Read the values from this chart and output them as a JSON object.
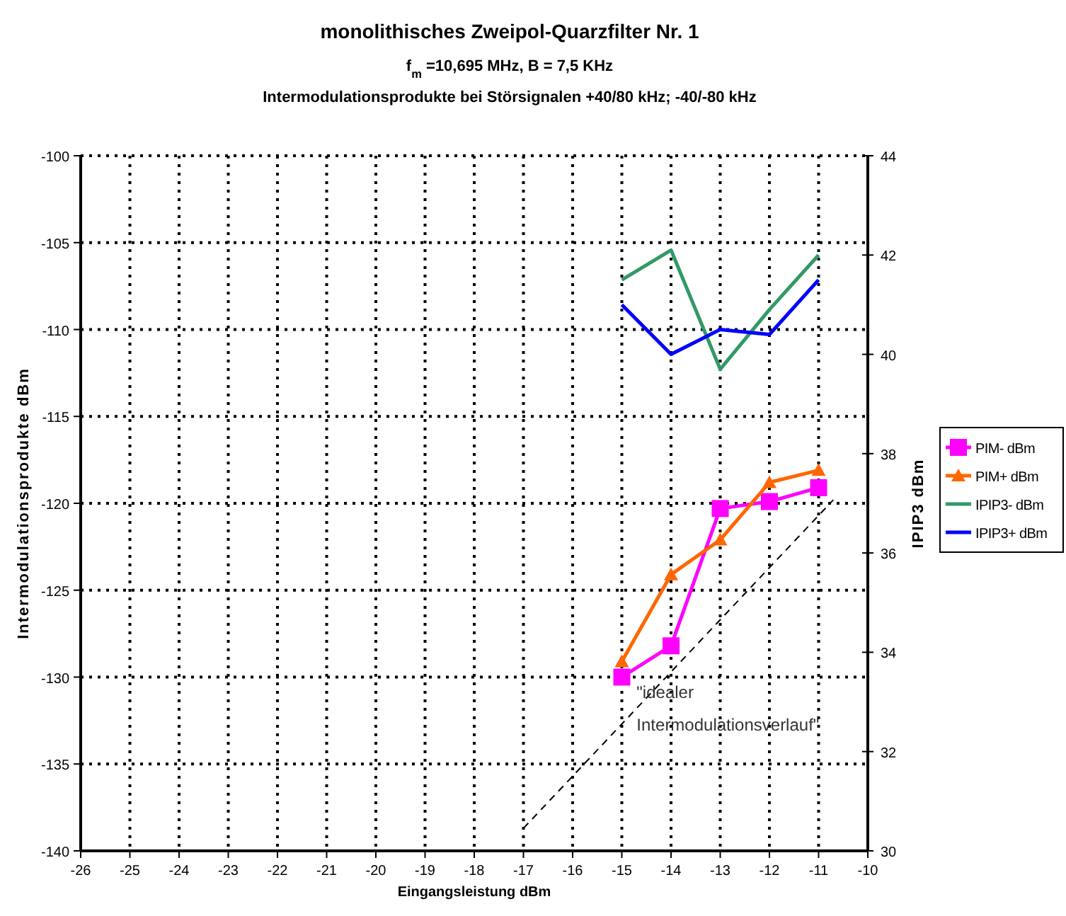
{
  "chart_data": {
    "type": "line",
    "title": "monolithisches Zweipol-Quarzfilter Nr. 1",
    "subtitle": "f$_{m}$ =10,695 MHz, B = 7,5 KHz\nIntermodulationsprodukte bei Störsignalen +40/80 kHz; -40/-80 kHz",
    "xlabel": "Eingangsleistung dBm",
    "ylabel": "Intermodulationsprodukte dBm",
    "y2label": "IPIP3 dBm",
    "x": [
      -15,
      -14,
      -13,
      -12,
      -11
    ],
    "series": [
      {
        "name": "PIM- dBm",
        "color": "#ff00ff",
        "marker": "square",
        "values": [
          -130,
          -128.2,
          -120.3,
          -119.9,
          -119.1
        ]
      },
      {
        "name": "PIM+ dBm",
        "color": "#ff6600",
        "marker": "triangle",
        "values": [
          -129.1,
          -124.1,
          -122.1,
          -118.8,
          -118.1
        ]
      },
      {
        "name": "IPIP3- dBm",
        "color": "#339966",
        "marker": "none",
        "axis": "y2",
        "values": [
          41.5,
          42.1,
          39.7,
          40.9,
          42.0
        ]
      },
      {
        "name": "IPIP3+ dBm",
        "color": "#0000ff",
        "marker": "none",
        "axis": "y2",
        "values": [
          41.0,
          40.0,
          40.5,
          40.4,
          41.5
        ]
      },
      {
        "color": "#000000",
        "marker": "none",
        "line_style": "dashed",
        "x": [
          -17,
          -10.7
        ],
        "values": [
          -138.7,
          -119.8
        ]
      }
    ],
    "annotations": [
      {
        "text": "\"idealer\nIntermodulationsverlauf\"",
        "x": -14.7,
        "y": -131.2
      }
    ],
    "xlim": [
      -26,
      -10
    ],
    "xticks": [
      -26,
      -25,
      -24,
      -23,
      -22,
      -21,
      -20,
      -19,
      -18,
      -17,
      -16,
      -15,
      -14,
      -13,
      -12,
      -11,
      -10
    ],
    "ylim": [
      -140,
      -100
    ],
    "yticks": [
      -140,
      -135,
      -130,
      -125,
      -120,
      -115,
      -110,
      -105,
      -100
    ],
    "y2lim": [
      30,
      44
    ],
    "y2ticks": [
      30,
      32,
      34,
      36,
      38,
      40,
      42,
      44
    ],
    "grid": true,
    "legend": "right"
  }
}
